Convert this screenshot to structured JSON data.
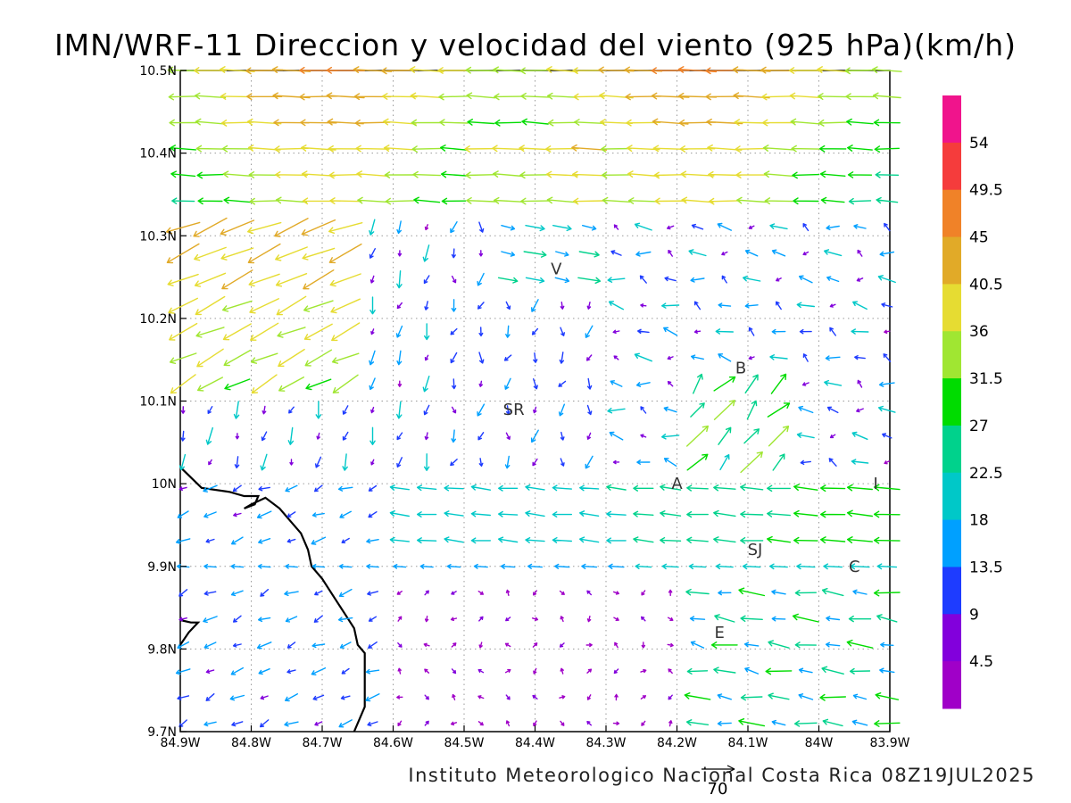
{
  "chart_data": {
    "type": "vector-field",
    "title": "IMN/WRF-11 Direccion y velocidad del viento (925 hPa)(km/h)",
    "footer": "Instituto Meteorologico Nacional Costa Rica 08Z19JUL2025",
    "reference_vector_label": "70",
    "x_tick_labels": [
      "84.9W",
      "84.8W",
      "84.7W",
      "84.6W",
      "84.5W",
      "84.4W",
      "84.3W",
      "84.2W",
      "84.1W",
      "84W",
      "83.9W"
    ],
    "x_tick_values": [
      -84.9,
      -84.8,
      -84.7,
      -84.6,
      -84.5,
      -84.4,
      -84.3,
      -84.2,
      -84.1,
      -84.0,
      -83.9
    ],
    "y_tick_labels": [
      "9.7N",
      "9.8N",
      "9.9N",
      "10N",
      "10.1N",
      "10.2N",
      "10.3N",
      "10.4N",
      "10.5N"
    ],
    "y_tick_values": [
      9.7,
      9.8,
      9.9,
      10.0,
      10.1,
      10.2,
      10.3,
      10.4,
      10.5
    ],
    "xlim": [
      -84.9,
      -83.9
    ],
    "ylim": [
      9.7,
      10.5
    ],
    "grid": true,
    "colorbar": {
      "labels": [
        "54",
        "49.5",
        "45",
        "40.5",
        "36",
        "31.5",
        "27",
        "22.5",
        "18",
        "13.5",
        "9",
        "4.5"
      ],
      "colors": [
        "#f0148c",
        "#f53c3c",
        "#f08228",
        "#e1aa28",
        "#e6dc32",
        "#a0e632",
        "#00dc00",
        "#00d28c",
        "#00c8c8",
        "#00a0ff",
        "#1e3cff",
        "#8200dc",
        "#a000c8"
      ]
    },
    "places": [
      {
        "label": "V",
        "lon": -84.37,
        "lat": 10.26
      },
      {
        "label": "SR",
        "lon": -84.43,
        "lat": 10.09
      },
      {
        "label": "B",
        "lon": -84.11,
        "lat": 10.14
      },
      {
        "label": "A",
        "lon": -84.2,
        "lat": 10.0
      },
      {
        "label": "I",
        "lon": -83.92,
        "lat": 10.0
      },
      {
        "label": "SJ",
        "lon": -84.09,
        "lat": 9.92
      },
      {
        "label": "C",
        "lon": -83.95,
        "lat": 9.9
      },
      {
        "label": "E",
        "lon": -84.14,
        "lat": 9.82
      }
    ],
    "coastline": [
      {
        "name": "main",
        "points": [
          [
            -84.9,
            10.02
          ],
          [
            -84.87,
            9.995
          ],
          [
            -84.83,
            9.99
          ],
          [
            -84.81,
            9.985
          ],
          [
            -84.79,
            9.985
          ],
          [
            -84.795,
            9.975
          ],
          [
            -84.81,
            9.97
          ],
          [
            -84.8,
            9.975
          ],
          [
            -84.78,
            9.983
          ],
          [
            -84.76,
            9.97
          ],
          [
            -84.745,
            9.955
          ],
          [
            -84.73,
            9.94
          ],
          [
            -84.72,
            9.92
          ],
          [
            -84.715,
            9.9
          ],
          [
            -84.7,
            9.885
          ],
          [
            -84.685,
            9.865
          ],
          [
            -84.67,
            9.845
          ],
          [
            -84.655,
            9.825
          ],
          [
            -84.65,
            9.805
          ],
          [
            -84.64,
            9.795
          ],
          [
            -84.64,
            9.775
          ],
          [
            -84.64,
            9.75
          ],
          [
            -84.64,
            9.73
          ],
          [
            -84.655,
            9.7
          ]
        ]
      },
      {
        "name": "nicoya-tip",
        "points": [
          [
            -84.9,
            9.835
          ],
          [
            -84.885,
            9.832
          ],
          [
            -84.875,
            9.832
          ],
          [
            -84.888,
            9.82
          ],
          [
            -84.9,
            9.805
          ]
        ]
      }
    ],
    "wind_regions": [
      {
        "region": "north-band",
        "lat": [
          10.33,
          10.5
        ],
        "direction": "westward",
        "speed_kmh": [
          27,
          45
        ]
      },
      {
        "region": "northwest-corner",
        "lat": [
          10.1,
          10.33
        ],
        "lon": [
          -84.9,
          -84.7
        ],
        "direction": "southwest",
        "speed_kmh": [
          31.5,
          54
        ]
      },
      {
        "region": "central-plateau",
        "lat": [
          9.75,
          10.0
        ],
        "lon": [
          -84.2,
          -83.9
        ],
        "direction": "westward",
        "speed_kmh": [
          13.5,
          40.5
        ]
      },
      {
        "region": "southwest-coast",
        "lat": [
          9.7,
          10.0
        ],
        "lon": [
          -84.9,
          -84.6
        ],
        "direction": "southwest",
        "speed_kmh": [
          9,
          22.5
        ]
      },
      {
        "region": "interior-south",
        "lat": [
          9.7,
          9.9
        ],
        "lon": [
          -84.6,
          -84.2
        ],
        "direction": "light variable",
        "speed_kmh": [
          0,
          9
        ]
      }
    ]
  }
}
